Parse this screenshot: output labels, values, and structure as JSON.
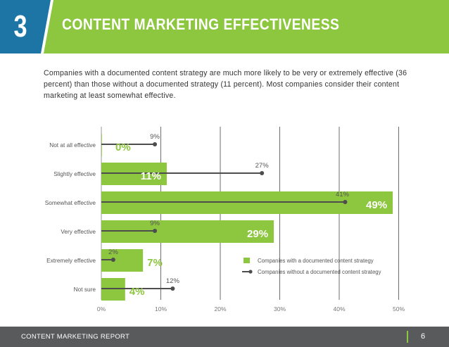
{
  "header": {
    "section_number": "3",
    "title": "CONTENT MARKETING EFFECTIVENESS",
    "number_block_color": "#1c75a5",
    "banner_color": "#8dc63f"
  },
  "intro_text": "Companies with a documented content strategy are much more likely to be very or extremely effective (36 percent) than those without a documented strategy (11 percent). Most companies consider their content marketing at least somewhat effective.",
  "footer": {
    "label": "CONTENT MARKETING REPORT",
    "page_number": "6"
  },
  "chart_data": {
    "type": "bar",
    "orientation": "horizontal",
    "categories": [
      "Not at all effective",
      "Slightly effective",
      "Somewhat effective",
      "Very effective",
      "Extremely effective",
      "Not sure"
    ],
    "series": [
      {
        "name": "Companies with a documented content strategy",
        "mark": "bar",
        "color": "#8dc63f",
        "values": [
          0,
          11,
          49,
          29,
          7,
          4
        ],
        "labels": [
          "0%",
          "11%",
          "49%",
          "29%",
          "7%",
          "4%"
        ]
      },
      {
        "name": "Companies without a documented content strategy",
        "mark": "lollipop",
        "color": "#4d4d4d",
        "values": [
          9,
          27,
          41,
          9,
          2,
          12
        ],
        "labels": [
          "9%",
          "27%",
          "41%",
          "9%",
          "2%",
          "12%"
        ]
      }
    ],
    "xlim": [
      0,
      50
    ],
    "xticks": [
      0,
      10,
      20,
      30,
      40,
      50
    ],
    "xtick_labels": [
      "0%",
      "10%",
      "20%",
      "30%",
      "40%",
      "50%"
    ],
    "grid": true,
    "legend": "bottom-right"
  }
}
